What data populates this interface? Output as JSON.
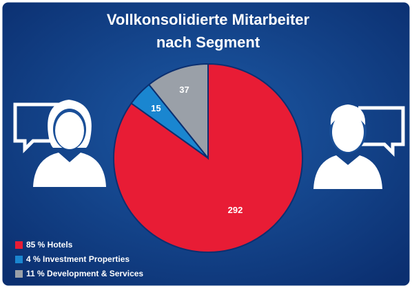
{
  "chart_data": {
    "type": "pie",
    "title": [
      "Vollkonsolidierte Mitarbeiter",
      "nach Segment"
    ],
    "categories": [
      "85 % Hotels",
      "4 % Investment Properties",
      "11 % Development & Services"
    ],
    "values": [
      292,
      15,
      37
    ],
    "colors": [
      "#e81c35",
      "#1a86d0",
      "#9aa0a8"
    ],
    "start_angle": 90,
    "direction": "clockwise",
    "legend": "lower left"
  }
}
